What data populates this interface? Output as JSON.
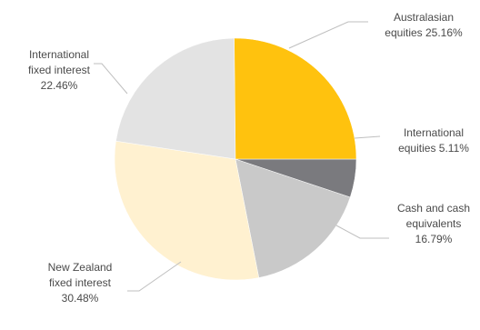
{
  "chart_data": {
    "type": "pie",
    "title": "",
    "slices": [
      {
        "name": "International equities",
        "value": 5.11,
        "label_lines": [
          "International",
          "equities 5.11%"
        ],
        "color": "#7a7a7e"
      },
      {
        "name": "Cash and cash equivalents",
        "value": 16.79,
        "label_lines": [
          "Cash and cash",
          "equivalents",
          "16.79%"
        ],
        "color": "#c9c9c9"
      },
      {
        "name": "New Zealand fixed interest",
        "value": 30.48,
        "label_lines": [
          "New Zealand",
          "fixed interest",
          "30.48%"
        ],
        "color": "#fff1d0"
      },
      {
        "name": "International fixed interest",
        "value": 22.46,
        "label_lines": [
          "International",
          "fixed interest",
          "22.46%"
        ],
        "color": "#e3e3e3"
      },
      {
        "name": "Australasian equities",
        "value": 25.16,
        "label_lines": [
          "Australasian",
          "equities 25.16%"
        ],
        "color": "#ffc20e"
      }
    ],
    "start_angle_deg": 0,
    "direction": "clockwise",
    "legend": "none"
  }
}
